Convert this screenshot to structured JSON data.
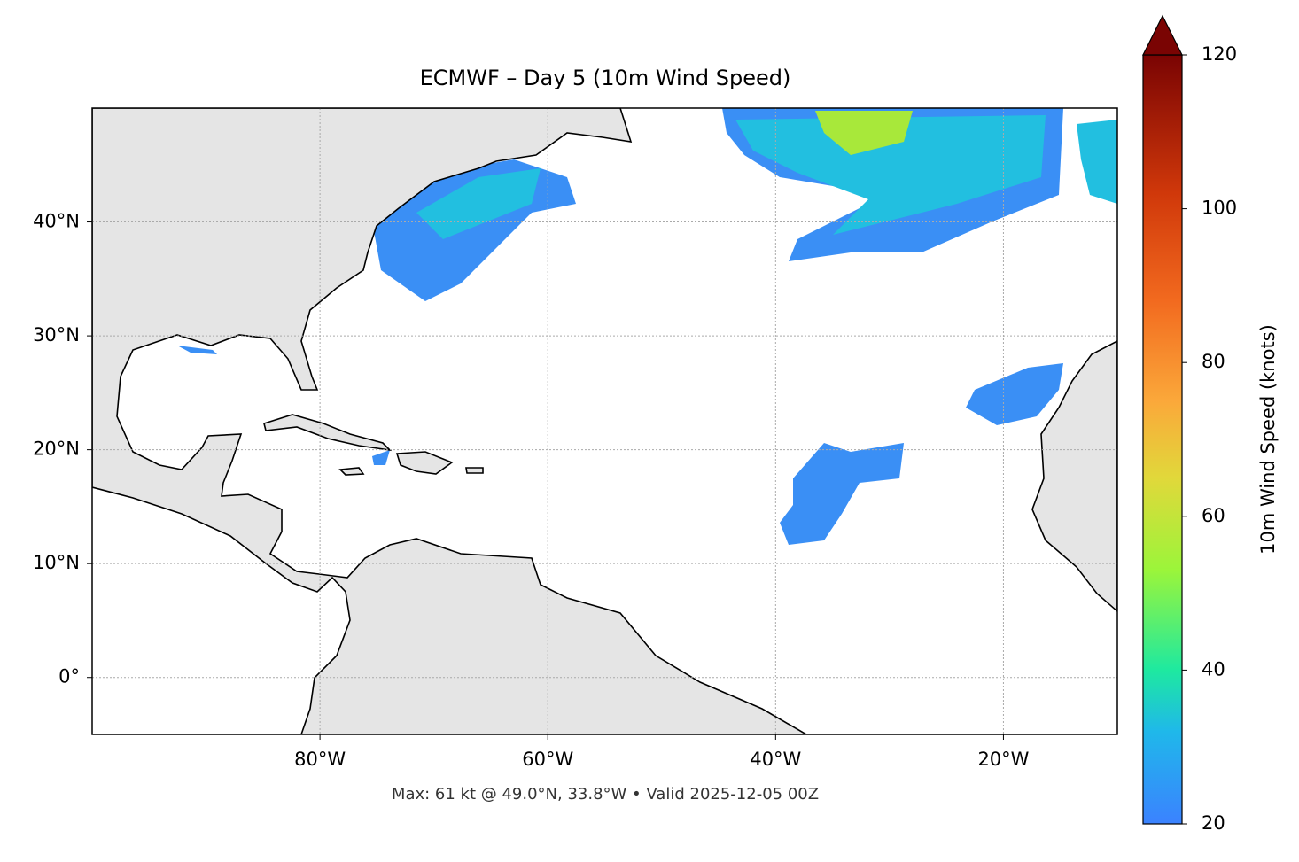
{
  "map": {
    "title": "ECMWF – Day 5 (10m Wind Speed)",
    "footer": "Max: 61 kt @ 49.0°N, 33.8°W • Valid 2025-12-05 00Z",
    "lonlim": [
      -100,
      -10
    ],
    "latlim": [
      -5,
      50
    ],
    "lon_ticks": [
      {
        "value": -80,
        "label": "80°W"
      },
      {
        "value": -60,
        "label": "60°W"
      },
      {
        "value": -40,
        "label": "40°W"
      },
      {
        "value": -20,
        "label": "20°W"
      }
    ],
    "lat_ticks": [
      {
        "value": 40,
        "label": "40°N"
      },
      {
        "value": 30,
        "label": "30°N"
      },
      {
        "value": 20,
        "label": "20°N"
      },
      {
        "value": 10,
        "label": "10°N"
      },
      {
        "value": 0,
        "label": "0°"
      }
    ],
    "colorbar": {
      "label": "10m Wind Speed (knots)",
      "lim": [
        20,
        120
      ],
      "ticks": [
        20,
        40,
        60,
        80,
        100,
        120
      ]
    }
  }
}
